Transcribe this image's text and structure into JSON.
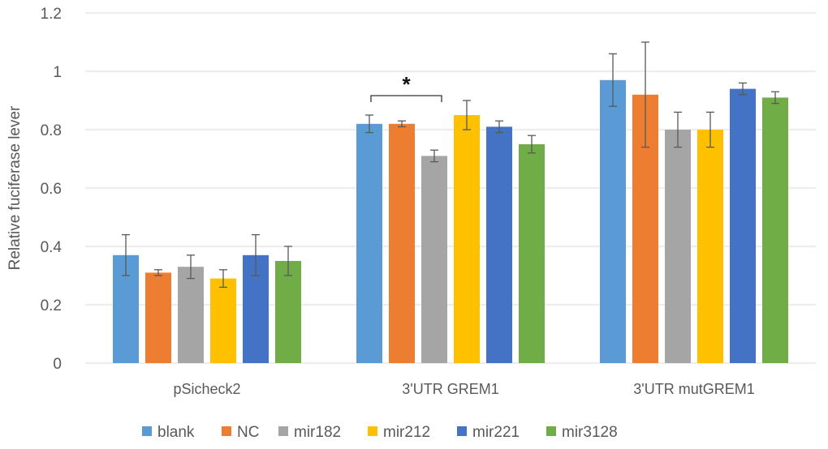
{
  "chart_data": {
    "type": "bar",
    "title": "",
    "xlabel": "",
    "ylabel": "Relative fuciferase lever",
    "ylim": [
      0,
      1.2
    ],
    "yticks": [
      0,
      0.2,
      0.4,
      0.6,
      0.8,
      1,
      1.2
    ],
    "ytick_labels": [
      "0",
      "0.2",
      "0.4",
      "0.6",
      "0.8",
      "1",
      "1.2"
    ],
    "grid": true,
    "legend_position": "bottom",
    "categories": [
      "pSicheck2",
      "3'UTR GREM1",
      "3'UTR mutGREM1"
    ],
    "series": [
      {
        "name": "blank",
        "color": "#5B9BD5",
        "values": [
          0.37,
          0.82,
          0.97
        ],
        "errors": [
          0.07,
          0.03,
          0.09
        ]
      },
      {
        "name": "NC",
        "color": "#ED7D31",
        "values": [
          0.31,
          0.82,
          0.92
        ],
        "errors": [
          0.01,
          0.01,
          0.18
        ]
      },
      {
        "name": "mir182",
        "color": "#A5A5A5",
        "values": [
          0.33,
          0.71,
          0.8
        ],
        "errors": [
          0.04,
          0.02,
          0.06
        ]
      },
      {
        "name": "mir212",
        "color": "#FFC000",
        "values": [
          0.29,
          0.85,
          0.8
        ],
        "errors": [
          0.03,
          0.05,
          0.06
        ]
      },
      {
        "name": "mir221",
        "color": "#4472C4",
        "values": [
          0.37,
          0.81,
          0.94
        ],
        "errors": [
          0.07,
          0.02,
          0.02
        ]
      },
      {
        "name": "mir3128",
        "color": "#70AD47",
        "values": [
          0.35,
          0.75,
          0.91
        ],
        "errors": [
          0.05,
          0.03,
          0.02
        ]
      }
    ],
    "annotations": [
      {
        "text": "*",
        "category": "3'UTR GREM1",
        "from_series": "blank",
        "to_series": "mir182"
      }
    ]
  }
}
